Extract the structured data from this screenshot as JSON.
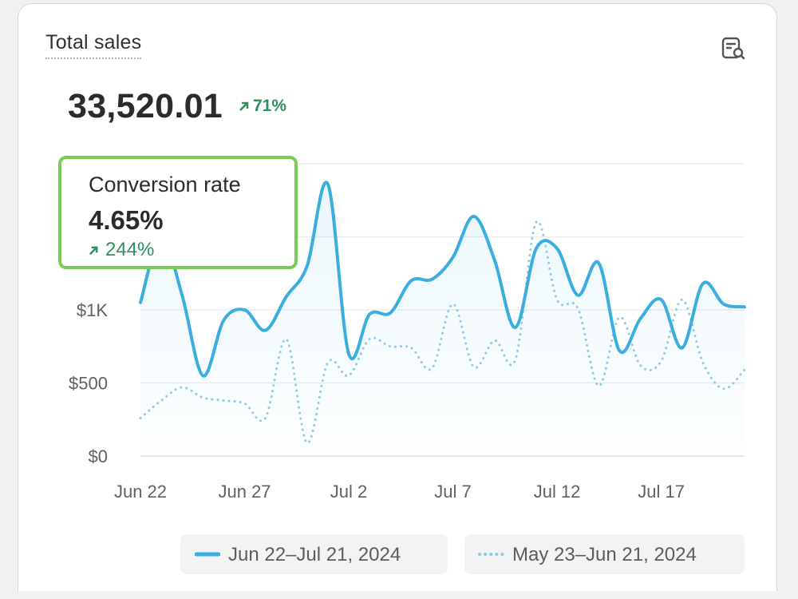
{
  "card": {
    "title": "Total sales",
    "total_value": "33,520.01",
    "total_change": "71%",
    "report_icon": "report-search-icon",
    "arrow_icon": "arrow-up-right-icon"
  },
  "tooltip": {
    "label": "Conversion rate",
    "value": "4.65%",
    "change": "244%"
  },
  "colors": {
    "current": "#3aaedf",
    "previous": "#8ecbe8",
    "positive": "#2f8f5a",
    "tooltip_border": "#77cd54"
  },
  "chart_data": {
    "type": "line",
    "x_tick_labels": [
      "Jun 22",
      "Jun 27",
      "Jul 2",
      "Jul 7",
      "Jul 12",
      "Jul 17"
    ],
    "y_tick_labels": [
      "$0",
      "$500",
      "$1K"
    ],
    "ylim": [
      0,
      2000
    ],
    "grid": true,
    "legend_position": "bottom",
    "series": [
      {
        "name": "Jun 22–Jul 21, 2024",
        "style": "solid",
        "x": [
          "Jun 22",
          "Jun 23",
          "Jun 24",
          "Jun 25",
          "Jun 26",
          "Jun 27",
          "Jun 28",
          "Jun 29",
          "Jun 30",
          "Jul 1",
          "Jul 2",
          "Jul 3",
          "Jul 4",
          "Jul 5",
          "Jul 6",
          "Jul 7",
          "Jul 8",
          "Jul 9",
          "Jul 10",
          "Jul 11",
          "Jul 12",
          "Jul 13",
          "Jul 14",
          "Jul 15",
          "Jul 16",
          "Jul 17",
          "Jul 18",
          "Jul 19",
          "Jul 20",
          "Jul 21"
        ],
        "values": [
          1050,
          1500,
          1100,
          550,
          930,
          1000,
          860,
          1090,
          1300,
          1860,
          700,
          970,
          980,
          1200,
          1210,
          1360,
          1640,
          1340,
          880,
          1420,
          1420,
          1100,
          1320,
          720,
          940,
          1070,
          740,
          1180,
          1040,
          1020
        ]
      },
      {
        "name": "May 23–Jun 21, 2024",
        "style": "dotted",
        "x": [
          "May 23",
          "May 24",
          "May 25",
          "May 26",
          "May 27",
          "May 28",
          "May 29",
          "May 30",
          "May 31",
          "Jun 1",
          "Jun 2",
          "Jun 3",
          "Jun 4",
          "Jun 5",
          "Jun 6",
          "Jun 7",
          "Jun 8",
          "Jun 9",
          "Jun 10",
          "Jun 11",
          "Jun 12",
          "Jun 13",
          "Jun 14",
          "Jun 15",
          "Jun 16",
          "Jun 17",
          "Jun 18",
          "Jun 19",
          "Jun 20",
          "Jun 21"
        ],
        "values": [
          260,
          380,
          470,
          400,
          380,
          360,
          260,
          800,
          90,
          640,
          550,
          800,
          750,
          740,
          600,
          1040,
          610,
          790,
          660,
          1600,
          1070,
          1010,
          480,
          950,
          620,
          650,
          1070,
          640,
          460,
          590
        ]
      }
    ]
  }
}
